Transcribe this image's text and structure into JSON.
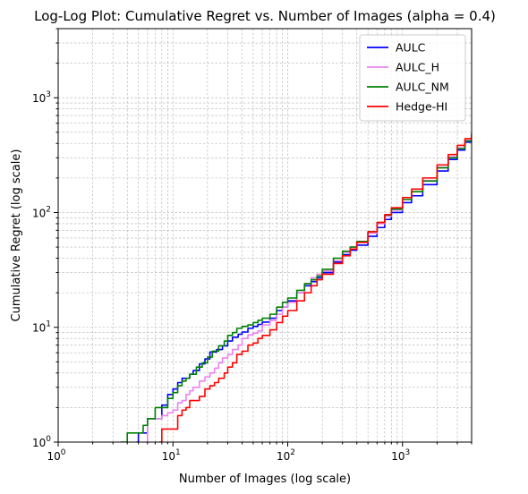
{
  "chart_data": {
    "type": "line",
    "title": "Log-Log Plot: Cumulative Regret vs. Number of Images (alpha = 0.4)",
    "xlabel": "Number of Images (log scale)",
    "ylabel": "Cumulative Regret (log scale)",
    "xscale": "log",
    "yscale": "log",
    "xlim": [
      1,
      4000
    ],
    "ylim": [
      1,
      4000
    ],
    "grid": true,
    "legend_position": "top-right",
    "x_ticks": [
      {
        "value": 1,
        "base": "10",
        "exp": "0"
      },
      {
        "value": 10,
        "base": "10",
        "exp": "1"
      },
      {
        "value": 100,
        "base": "10",
        "exp": "2"
      },
      {
        "value": 1000,
        "base": "10",
        "exp": "3"
      }
    ],
    "y_ticks": [
      {
        "value": 1,
        "base": "10",
        "exp": "0"
      },
      {
        "value": 10,
        "base": "10",
        "exp": "1"
      },
      {
        "value": 100,
        "base": "10",
        "exp": "2"
      },
      {
        "value": 1000,
        "base": "10",
        "exp": "3"
      }
    ],
    "series": [
      {
        "name": "AULC",
        "color": "#0000ff",
        "points": [
          [
            4.8,
            1.0
          ],
          [
            5.0,
            1.2
          ],
          [
            6.0,
            1.6
          ],
          [
            7.0,
            1.6
          ],
          [
            8.0,
            2.1
          ],
          [
            9.0,
            2.6
          ],
          [
            10,
            2.9
          ],
          [
            11,
            3.3
          ],
          [
            12,
            3.6
          ],
          [
            13,
            3.6
          ],
          [
            14,
            3.9
          ],
          [
            15,
            4.2
          ],
          [
            17,
            4.8
          ],
          [
            19,
            5.3
          ],
          [
            21,
            6.1
          ],
          [
            24,
            6.4
          ],
          [
            27,
            6.9
          ],
          [
            30,
            7.6
          ],
          [
            33,
            8.2
          ],
          [
            37,
            8.7
          ],
          [
            40,
            9.1
          ],
          [
            45,
            9.8
          ],
          [
            50,
            10.2
          ],
          [
            55,
            10.6
          ],
          [
            60,
            11.1
          ],
          [
            70,
            12.0
          ],
          [
            80,
            14.0
          ],
          [
            90,
            15.0
          ],
          [
            100,
            17.0
          ],
          [
            120,
            20.0
          ],
          [
            140,
            23.0
          ],
          [
            160,
            25.0
          ],
          [
            180,
            27.0
          ],
          [
            200,
            30.0
          ],
          [
            250,
            37.0
          ],
          [
            300,
            43.0
          ],
          [
            350,
            47.0
          ],
          [
            400,
            52.0
          ],
          [
            500,
            62.0
          ],
          [
            600,
            74.0
          ],
          [
            700,
            87.0
          ],
          [
            800,
            100.0
          ],
          [
            1000,
            122.0
          ],
          [
            1200,
            140.0
          ],
          [
            1500,
            175.0
          ],
          [
            2000,
            230.0
          ],
          [
            2500,
            290.0
          ],
          [
            3000,
            350.0
          ],
          [
            3500,
            410.0
          ],
          [
            4000,
            460.0
          ]
        ]
      },
      {
        "name": "AULC_H",
        "color": "#ee82ee",
        "points": [
          [
            5.8,
            1.0
          ],
          [
            6.0,
            1.6
          ],
          [
            7.0,
            1.6
          ],
          [
            8.0,
            1.7
          ],
          [
            9.0,
            1.8
          ],
          [
            10,
            1.9
          ],
          [
            11,
            2.2
          ],
          [
            12,
            2.3
          ],
          [
            13,
            2.6
          ],
          [
            14,
            2.8
          ],
          [
            15,
            3.0
          ],
          [
            17,
            3.4
          ],
          [
            19,
            3.7
          ],
          [
            21,
            4.0
          ],
          [
            23,
            4.4
          ],
          [
            25,
            4.9
          ],
          [
            27,
            5.4
          ],
          [
            30,
            5.8
          ],
          [
            33,
            6.4
          ],
          [
            37,
            7.0
          ],
          [
            40,
            8.0
          ],
          [
            45,
            8.6
          ],
          [
            50,
            8.9
          ],
          [
            55,
            9.3
          ],
          [
            60,
            10.5
          ],
          [
            70,
            11.5
          ],
          [
            80,
            13.0
          ],
          [
            90,
            15.0
          ],
          [
            100,
            16.5
          ],
          [
            120,
            20.0
          ],
          [
            140,
            24.0
          ],
          [
            160,
            27.0
          ],
          [
            180,
            29.0
          ],
          [
            200,
            31.0
          ],
          [
            250,
            38.0
          ],
          [
            300,
            45.0
          ],
          [
            350,
            50.0
          ],
          [
            400,
            55.0
          ],
          [
            500,
            66.0
          ],
          [
            600,
            80.0
          ],
          [
            700,
            93.0
          ],
          [
            800,
            105.0
          ],
          [
            1000,
            130.0
          ],
          [
            1200,
            152.0
          ],
          [
            1500,
            190.0
          ],
          [
            2000,
            248.0
          ],
          [
            2500,
            305.0
          ],
          [
            3000,
            365.0
          ],
          [
            3500,
            425.0
          ],
          [
            4000,
            480.0
          ]
        ]
      },
      {
        "name": "AULC_NM",
        "color": "#008000",
        "points": [
          [
            3.5,
            1.0
          ],
          [
            4.0,
            1.2
          ],
          [
            5.0,
            1.2
          ],
          [
            5.5,
            1.4
          ],
          [
            6.0,
            1.6
          ],
          [
            7.0,
            2.0
          ],
          [
            8.0,
            2.0
          ],
          [
            9.0,
            2.4
          ],
          [
            10,
            2.7
          ],
          [
            11,
            3.1
          ],
          [
            12,
            3.4
          ],
          [
            13,
            3.6
          ],
          [
            14,
            3.9
          ],
          [
            16,
            4.5
          ],
          [
            18,
            4.9
          ],
          [
            20,
            5.5
          ],
          [
            22,
            6.2
          ],
          [
            25,
            6.9
          ],
          [
            28,
            7.6
          ],
          [
            30,
            8.5
          ],
          [
            33,
            9.0
          ],
          [
            36,
            9.8
          ],
          [
            40,
            10.2
          ],
          [
            45,
            10.5
          ],
          [
            50,
            11.0
          ],
          [
            55,
            11.5
          ],
          [
            60,
            12.0
          ],
          [
            70,
            13.0
          ],
          [
            80,
            15.0
          ],
          [
            90,
            16.5
          ],
          [
            100,
            18.0
          ],
          [
            120,
            21.0
          ],
          [
            140,
            24.0
          ],
          [
            160,
            26.0
          ],
          [
            180,
            28.0
          ],
          [
            200,
            32.0
          ],
          [
            250,
            40.0
          ],
          [
            300,
            46.0
          ],
          [
            350,
            50.0
          ],
          [
            400,
            56.0
          ],
          [
            500,
            68.0
          ],
          [
            600,
            82.0
          ],
          [
            700,
            95.0
          ],
          [
            800,
            107.0
          ],
          [
            1000,
            130.0
          ],
          [
            1200,
            152.0
          ],
          [
            1500,
            188.0
          ],
          [
            2000,
            245.0
          ],
          [
            2500,
            300.0
          ],
          [
            3000,
            360.0
          ],
          [
            3500,
            420.0
          ],
          [
            4000,
            470.0
          ]
        ]
      },
      {
        "name": "Hedge-HI",
        "color": "#ff0000",
        "points": [
          [
            7.6,
            1.0
          ],
          [
            8.0,
            1.3
          ],
          [
            9.0,
            1.3
          ],
          [
            10,
            1.3
          ],
          [
            11,
            1.7
          ],
          [
            12,
            1.9
          ],
          [
            13,
            2.0
          ],
          [
            14,
            2.3
          ],
          [
            15,
            2.3
          ],
          [
            17,
            2.5
          ],
          [
            19,
            2.9
          ],
          [
            21,
            3.1
          ],
          [
            23,
            3.3
          ],
          [
            25,
            3.6
          ],
          [
            28,
            4.0
          ],
          [
            30,
            4.5
          ],
          [
            33,
            4.9
          ],
          [
            36,
            5.8
          ],
          [
            40,
            6.2
          ],
          [
            45,
            7.0
          ],
          [
            50,
            7.3
          ],
          [
            55,
            8.0
          ],
          [
            60,
            8.5
          ],
          [
            70,
            9.5
          ],
          [
            80,
            11.0
          ],
          [
            90,
            12.5
          ],
          [
            100,
            14.0
          ],
          [
            120,
            17.0
          ],
          [
            140,
            20.0
          ],
          [
            160,
            23.0
          ],
          [
            180,
            26.0
          ],
          [
            200,
            29.0
          ],
          [
            250,
            36.0
          ],
          [
            300,
            42.0
          ],
          [
            350,
            48.0
          ],
          [
            400,
            55.0
          ],
          [
            500,
            68.0
          ],
          [
            600,
            82.0
          ],
          [
            700,
            96.0
          ],
          [
            800,
            110.0
          ],
          [
            1000,
            135.0
          ],
          [
            1200,
            160.0
          ],
          [
            1500,
            200.0
          ],
          [
            2000,
            260.0
          ],
          [
            2500,
            320.0
          ],
          [
            3000,
            385.0
          ],
          [
            3500,
            440.0
          ],
          [
            4000,
            490.0
          ]
        ]
      }
    ]
  }
}
